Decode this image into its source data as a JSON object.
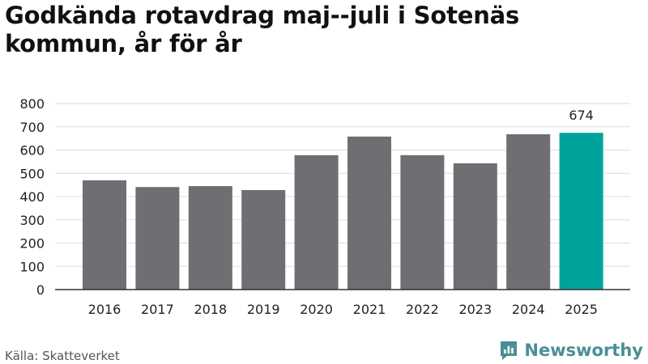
{
  "title": "Godkända rotavdrag maj--juli i Sotenäs kommun, år för år",
  "source": "Källa: Skatteverket",
  "brand": {
    "name": "Newsworthy",
    "icon": "newsworthy-logo-icon"
  },
  "colors": {
    "bar": "#6e6e73",
    "highlight": "#00a39b",
    "grid": "#dddddd",
    "axis": "#333333",
    "brand": "#4a8f97"
  },
  "chart_data": {
    "type": "bar",
    "categories": [
      "2016",
      "2017",
      "2018",
      "2019",
      "2020",
      "2021",
      "2022",
      "2023",
      "2024",
      "2025"
    ],
    "values": [
      470,
      441,
      445,
      428,
      578,
      658,
      578,
      543,
      668,
      674
    ],
    "highlight_index": 9,
    "data_labels": {
      "9": "674"
    },
    "yticks": [
      "0",
      "100",
      "200",
      "300",
      "400",
      "500",
      "600",
      "700",
      "800"
    ],
    "ylim": [
      0,
      800
    ],
    "grid": true,
    "legend": "none"
  }
}
